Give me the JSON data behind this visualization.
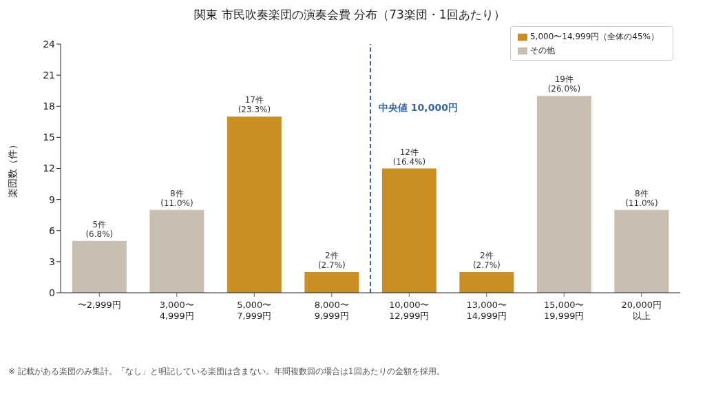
{
  "chart_data": {
    "type": "bar",
    "title": "関東 市民吹奏楽団の演奏会費 分布（73楽団・1回あたり）",
    "ylabel": "楽団数（件）",
    "categories": [
      "〜2,999円",
      "3,000〜4,999円",
      "5,000〜7,999円",
      "8,000〜9,999円",
      "10,000〜12,999円",
      "13,000〜14,999円",
      "15,000〜19,999円",
      "20,000円以上"
    ],
    "stacked": true,
    "series": [
      {
        "name": "5,000〜14,999円（全体の45%）",
        "color": "#c98f22",
        "values": [
          null,
          null,
          17,
          2,
          12,
          2,
          null,
          null
        ],
        "value_labels": [
          null,
          null,
          "17件\n(23.3%)",
          "2件\n(2.7%)",
          "12件\n(16.4%)",
          "2件\n(2.7%)",
          null,
          null
        ]
      },
      {
        "name": "その他",
        "color": "#c8bfb0",
        "values": [
          5,
          8,
          null,
          null,
          null,
          null,
          19,
          8
        ],
        "value_labels": [
          "5件\n(6.8%)",
          "8件\n(11.0%)",
          null,
          null,
          null,
          null,
          "19件\n(26.0%)",
          "8件\n(11.0%)"
        ]
      }
    ],
    "ylim": [
      0,
      24
    ],
    "yticks": [
      0,
      3,
      6,
      9,
      12,
      15,
      18,
      21,
      24
    ],
    "grid": false,
    "legend": "top right",
    "ref_lines": [
      {
        "axis": "x",
        "value": "10,000〜12,999円",
        "label": "中央値 10,000円",
        "color": "#3a64a8",
        "line_style": "dashed"
      }
    ],
    "annotations": [
      "※ 記載がある楽団のみ集計。「なし」と明記している楽団は含まない。年間複数回の場合は1回あたりの金額を採用。"
    ]
  }
}
